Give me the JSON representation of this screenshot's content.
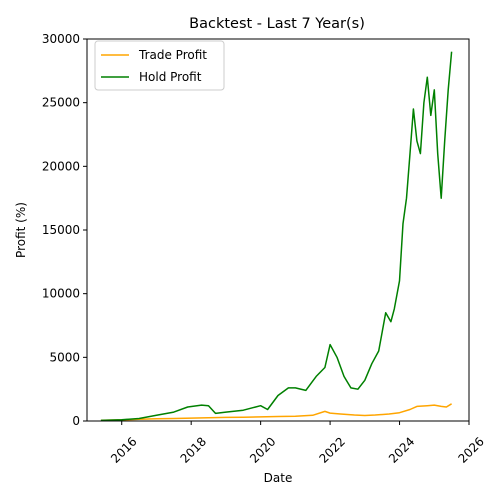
{
  "chart_data": {
    "type": "line",
    "title": "Backtest - Last 7 Year(s)",
    "xlabel": "Date",
    "ylabel": "Profit (%)",
    "xlim": [
      2015,
      2026
    ],
    "ylim": [
      0,
      30000
    ],
    "x_ticks": [
      2016,
      2018,
      2020,
      2022,
      2024,
      2026
    ],
    "y_ticks": [
      0,
      5000,
      10000,
      15000,
      20000,
      25000,
      30000
    ],
    "grid": false,
    "legend_position": "top-left",
    "series": [
      {
        "name": "Trade Profit",
        "color": "#ffa500",
        "x": [
          2015.4,
          2016.0,
          2016.5,
          2017.0,
          2017.5,
          2018.0,
          2018.5,
          2019.0,
          2019.5,
          2020.0,
          2020.5,
          2021.0,
          2021.5,
          2021.85,
          2022.0,
          2022.3,
          2022.7,
          2023.0,
          2023.3,
          2023.7,
          2024.0,
          2024.3,
          2024.5,
          2024.8,
          2025.0,
          2025.2,
          2025.35,
          2025.5
        ],
        "y": [
          60,
          90,
          130,
          170,
          200,
          230,
          260,
          280,
          300,
          320,
          350,
          380,
          450,
          750,
          620,
          550,
          470,
          430,
          470,
          550,
          650,
          900,
          1150,
          1200,
          1250,
          1150,
          1100,
          1350
        ]
      },
      {
        "name": "Hold Profit",
        "color": "#008000",
        "x": [
          2015.4,
          2016.0,
          2016.5,
          2017.0,
          2017.5,
          2017.9,
          2018.3,
          2018.5,
          2018.7,
          2019.0,
          2019.5,
          2020.0,
          2020.2,
          2020.5,
          2020.8,
          2021.0,
          2021.3,
          2021.6,
          2021.85,
          2022.0,
          2022.2,
          2022.4,
          2022.6,
          2022.8,
          2023.0,
          2023.2,
          2023.4,
          2023.6,
          2023.75,
          2023.85,
          2024.0,
          2024.1,
          2024.2,
          2024.3,
          2024.4,
          2024.5,
          2024.6,
          2024.7,
          2024.8,
          2024.9,
          2025.0,
          2025.1,
          2025.2,
          2025.3,
          2025.4,
          2025.5
        ],
        "y": [
          50,
          100,
          200,
          450,
          700,
          1100,
          1250,
          1200,
          600,
          700,
          850,
          1200,
          900,
          2000,
          2600,
          2600,
          2400,
          3500,
          4200,
          6000,
          5000,
          3500,
          2600,
          2500,
          3200,
          4500,
          5500,
          8500,
          7800,
          8800,
          11000,
          15500,
          17500,
          21000,
          24500,
          22000,
          21000,
          25000,
          27000,
          24000,
          26000,
          21000,
          17500,
          22000,
          26000,
          29000
        ]
      }
    ]
  }
}
